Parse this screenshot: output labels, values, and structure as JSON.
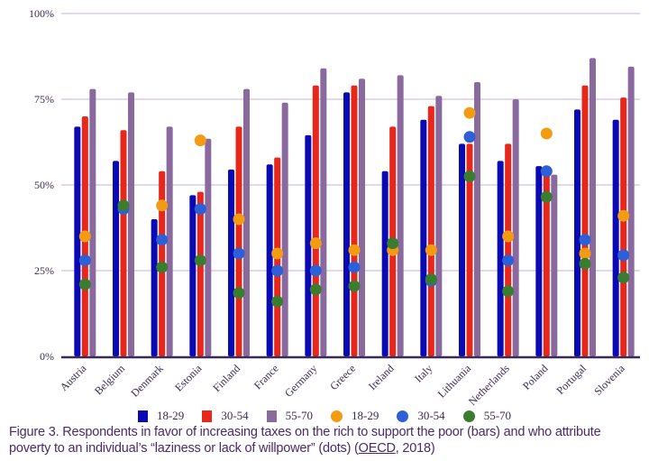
{
  "chart_data": {
    "type": "bar",
    "title": "",
    "xlabel": "",
    "ylabel": "",
    "ylim": [
      0,
      100
    ],
    "yticks": [
      0,
      25,
      50,
      75,
      100
    ],
    "ytick_labels": [
      "0%",
      "25%",
      "50%",
      "75%",
      "100%"
    ],
    "grid": true,
    "legend_position": "bottom",
    "categories": [
      "Austria",
      "Belgium",
      "Denmark",
      "Estonia",
      "Finland",
      "France",
      "Germany",
      "Greece",
      "Ireland",
      "Italy",
      "Lithuania",
      "Netherlands",
      "Poland",
      "Portugal",
      "Slovenia"
    ],
    "series": [
      {
        "name": "18-29",
        "kind": "bar",
        "color": "#0a0ab4",
        "values": [
          67,
          57,
          40,
          47,
          54.5,
          56,
          64.5,
          77,
          54,
          69,
          62,
          57,
          55.5,
          72,
          69
        ]
      },
      {
        "name": "30-54",
        "kind": "bar",
        "color": "#e8261a",
        "values": [
          70,
          66,
          54,
          48,
          67,
          58,
          79,
          79,
          67,
          73,
          62,
          62,
          55.5,
          79,
          75.5
        ]
      },
      {
        "name": "55-70",
        "kind": "bar",
        "color": "#8a6a9e",
        "values": [
          78,
          77,
          67,
          63.5,
          78,
          74,
          84,
          81,
          82,
          76,
          80,
          75,
          53,
          87,
          84.5
        ]
      },
      {
        "name": "18-29",
        "kind": "dot",
        "color": "#f39c12",
        "values": [
          35,
          null,
          44,
          63,
          40,
          30,
          33,
          31,
          31,
          31,
          71,
          35,
          65,
          30,
          41
        ]
      },
      {
        "name": "30-54",
        "kind": "dot",
        "color": "#2d5fd6",
        "values": [
          28,
          43,
          34,
          43,
          30,
          25,
          25,
          26,
          null,
          22,
          64,
          28,
          54,
          34,
          29.5
        ]
      },
      {
        "name": "55-70",
        "kind": "dot",
        "color": "#3b7d2e",
        "values": [
          21,
          44,
          26,
          28,
          18.5,
          16,
          19.5,
          20.5,
          33,
          22.5,
          52.5,
          19,
          46.5,
          27,
          23
        ]
      }
    ]
  },
  "legend": {
    "items": [
      {
        "label": "18-29",
        "kind": "bar",
        "color": "#0a0ab4"
      },
      {
        "label": "30-54",
        "kind": "bar",
        "color": "#e8261a"
      },
      {
        "label": "55-70",
        "kind": "bar",
        "color": "#8a6a9e"
      },
      {
        "label": "18-29",
        "kind": "dot",
        "color": "#f39c12"
      },
      {
        "label": "30-54",
        "kind": "dot",
        "color": "#2d5fd6"
      },
      {
        "label": "55-70",
        "kind": "dot",
        "color": "#3b7d2e"
      }
    ]
  },
  "caption": {
    "text_before": "Figure 3. Respondents in favor of increasing taxes on the rich to support the poor (bars) and who attribute poverty to an individual’s “laziness or lack of willpower” (dots) (",
    "source_link": "OECD",
    "text_after": ", 2018)"
  },
  "colors": {
    "grid": "#d9cde6",
    "axis": "#3b2a55"
  }
}
